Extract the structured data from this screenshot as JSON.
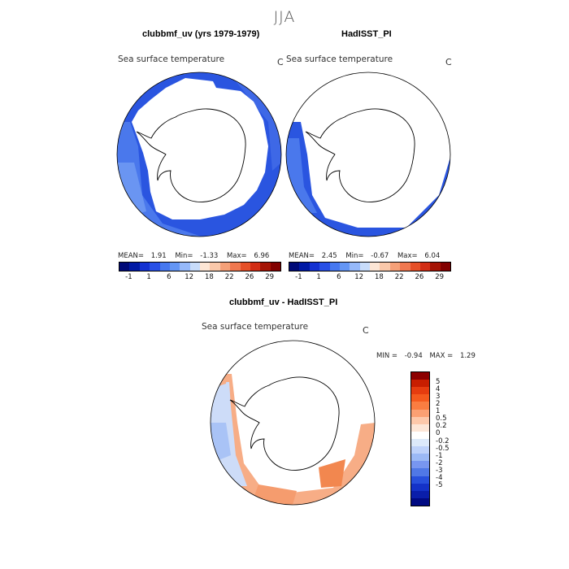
{
  "season": "JJA",
  "panels": [
    {
      "title": "clubbmf_uv (yrs 1979-1979)",
      "variable_label": "Sea surface temperature",
      "unit": "C",
      "stats": {
        "mean_label": "MEAN=",
        "mean": "1.91",
        "min_label": "Min=",
        "min": "-1.33",
        "max_label": "Max=",
        "max": "6.96"
      }
    },
    {
      "title": "HadISST_PI",
      "variable_label": "Sea surface temperature",
      "unit": "C",
      "stats": {
        "mean_label": "MEAN=",
        "mean": "2.45",
        "min_label": "Min=",
        "min": "-0.67",
        "max_label": "Max=",
        "max": "6.04"
      }
    },
    {
      "title": "clubbmf_uv - HadISST_PI",
      "variable_label": "Sea surface temperature",
      "unit": "C",
      "stats": {
        "min_label": "MIN =",
        "min": "-0.94",
        "max_label": "MAX =",
        "max": "1.29"
      }
    }
  ],
  "abs_colorbar": {
    "colors": [
      "#000a78",
      "#0019a5",
      "#1432d2",
      "#2850e6",
      "#4678f0",
      "#6496f5",
      "#96b9fa",
      "#c8dcfa",
      "#fde6d5",
      "#fac8aa",
      "#f5a078",
      "#f07850",
      "#e65028",
      "#d22d14",
      "#a51405",
      "#820000"
    ],
    "tick_labels": [
      "-1",
      "1",
      "6",
      "12",
      "18",
      "22",
      "26",
      "29"
    ]
  },
  "diff_colorbar": {
    "colors": [
      "#8c0000",
      "#c81e00",
      "#e63c0f",
      "#f55a1e",
      "#fa7d41",
      "#fba073",
      "#fdc8aa",
      "#fde6d7",
      "#ffffff",
      "#dce9fa",
      "#bed2fa",
      "#9bb9f5",
      "#7896f0",
      "#5078e6",
      "#2850dc",
      "#1432c8",
      "#0a1eaa",
      "#000a82"
    ],
    "tick_labels": [
      "5",
      "4",
      "3",
      "2",
      "1",
      "0.5",
      "0.2",
      "0",
      "-0.2",
      "-0.5",
      "-1",
      "-2",
      "-3",
      "-4",
      "-5"
    ]
  }
}
